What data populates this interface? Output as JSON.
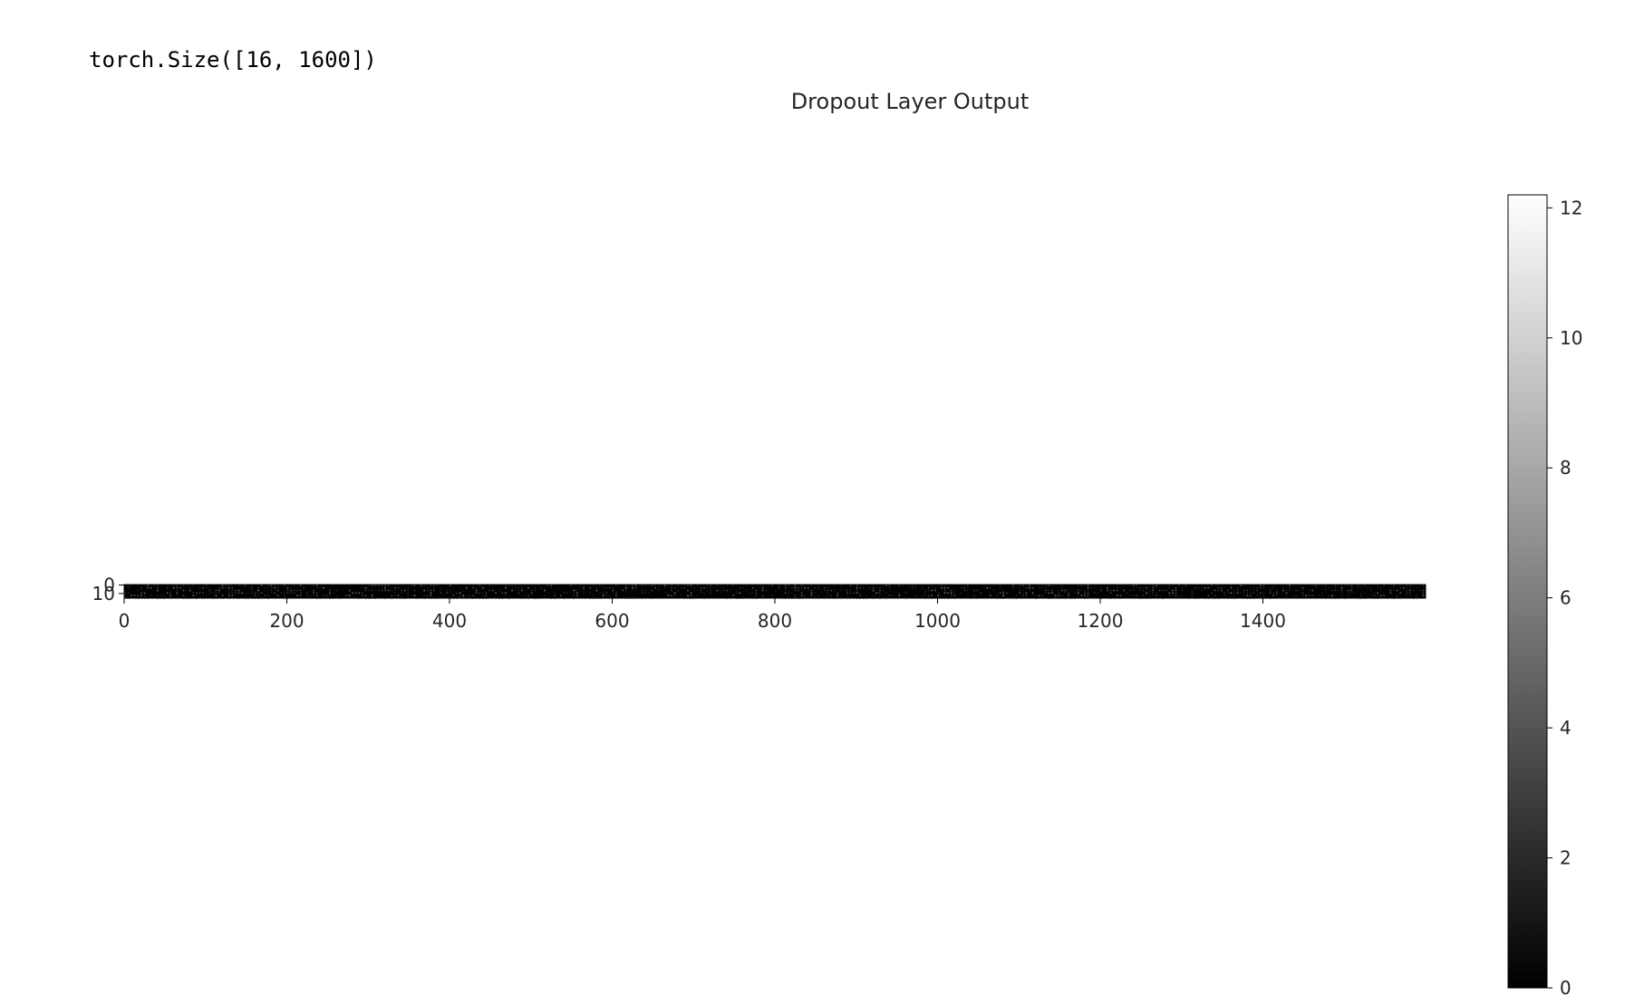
{
  "cell_output": {
    "text": "torch.Size([16, 1600])"
  },
  "chart_data": {
    "type": "heatmap",
    "title": "Dropout Layer Output",
    "xlabel": "",
    "ylabel": "",
    "rows": 16,
    "cols": 1600,
    "xlim": [
      0,
      1600
    ],
    "ylim": [
      0,
      16
    ],
    "x_ticks": [
      0,
      200,
      400,
      600,
      800,
      1000,
      1200,
      1400
    ],
    "y_ticks": [
      0,
      10
    ],
    "colormap": "gray",
    "colorbar": {
      "vmin": 0,
      "vmax": 12.2,
      "ticks": [
        0,
        2,
        4,
        6,
        8,
        10,
        12
      ]
    },
    "grid": false
  }
}
